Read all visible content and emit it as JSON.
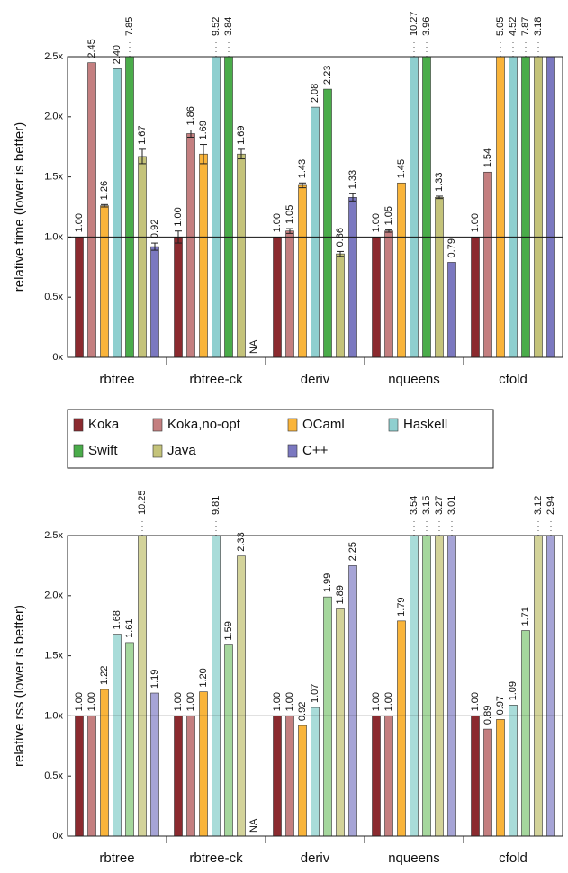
{
  "legend": [
    "Koka",
    "Koka,no-opt",
    "OCaml",
    "Haskell",
    "Swift",
    "Java",
    "C++"
  ],
  "chart_data": [
    {
      "type": "bar",
      "ylabel": "relative time  (lower is better)",
      "categories": [
        "rbtree",
        "rbtree-ck",
        "deriv",
        "nqueens",
        "cfold"
      ],
      "ylim": [
        0,
        2.5
      ],
      "yticks": [
        {
          "value": 0,
          "label": "0x"
        },
        {
          "value": 0.5,
          "label": "0.5x"
        },
        {
          "value": 1,
          "label": "1.0x"
        },
        {
          "value": 1.5,
          "label": "1.5x"
        },
        {
          "value": 2,
          "label": "2.0x"
        },
        {
          "value": 2.5,
          "label": "2.5x"
        }
      ],
      "reference_line": 1,
      "series": [
        {
          "color": "#8b2a2f",
          "values": [
            1,
            1,
            1,
            1,
            1
          ],
          "value_labels": [
            "1.00",
            "1.00",
            "1.00",
            "1.00",
            "1.00"
          ],
          "errors": [
            null,
            0.05,
            null,
            null,
            null
          ]
        },
        {
          "color": "#c47f80",
          "values": [
            2.45,
            1.86,
            1.05,
            1.05,
            1.54
          ],
          "value_labels": [
            "2.45",
            "1.86",
            "1.05",
            "1.05",
            "1.54"
          ],
          "errors": [
            null,
            0.03,
            0.02,
            0.01,
            null
          ]
        },
        {
          "color": "#f9b43a",
          "values": [
            1.26,
            1.69,
            1.43,
            1.45,
            5.05
          ],
          "value_labels": [
            "1.26",
            "1.69",
            "1.43",
            "1.45",
            "5.05"
          ],
          "errors": [
            0.01,
            0.08,
            0.02,
            null,
            null
          ]
        },
        {
          "color": "#8fcfcf",
          "values": [
            2.4,
            9.52,
            2.08,
            10.27,
            4.52
          ],
          "value_labels": [
            "2.40",
            "9.52",
            "2.08",
            "10.27",
            "4.52"
          ],
          "errors": [
            null,
            null,
            null,
            null,
            null
          ]
        },
        {
          "color": "#4aac4a",
          "values": [
            7.85,
            3.84,
            2.23,
            3.96,
            7.87
          ],
          "value_labels": [
            "7.85",
            "3.84",
            "2.23",
            "3.96",
            "7.87"
          ],
          "errors": [
            null,
            null,
            null,
            null,
            null
          ]
        },
        {
          "color": "#c4c37a",
          "values": [
            1.67,
            1.69,
            0.86,
            1.33,
            3.18
          ],
          "value_labels": [
            "1.67",
            "1.69",
            "0.86",
            "1.33",
            "3.18"
          ],
          "errors": [
            0.06,
            0.04,
            0.02,
            0.01,
            null
          ]
        },
        {
          "color": "#7b78c0",
          "values": [
            0.92,
            null,
            1.33,
            0.79,
            2.5
          ],
          "value_labels": [
            "0.92",
            "NA",
            "1.33",
            "0.79",
            null
          ],
          "errors": [
            0.03,
            null,
            0.03,
            null,
            null
          ]
        }
      ]
    },
    {
      "type": "bar",
      "ylabel": "relative rss  (lower is better)",
      "categories": [
        "rbtree",
        "rbtree-ck",
        "deriv",
        "nqueens",
        "cfold"
      ],
      "ylim": [
        0,
        2.5
      ],
      "yticks": [
        {
          "value": 0,
          "label": "0x"
        },
        {
          "value": 0.5,
          "label": "0.5x"
        },
        {
          "value": 1,
          "label": "1.0x"
        },
        {
          "value": 1.5,
          "label": "1.5x"
        },
        {
          "value": 2,
          "label": "2.0x"
        },
        {
          "value": 2.5,
          "label": "2.5x"
        }
      ],
      "reference_line": 1,
      "series": [
        {
          "color": "#8b2a2f",
          "values": [
            1,
            1,
            1,
            1,
            1
          ],
          "value_labels": [
            "1.00",
            "1.00",
            "1.00",
            "1.00",
            "1.00"
          ]
        },
        {
          "color": "#c47f80",
          "values": [
            1,
            1,
            1,
            1,
            0.89
          ],
          "value_labels": [
            "1.00",
            "1.00",
            "1.00",
            "1.00",
            "0.89"
          ]
        },
        {
          "color": "#f9b43a",
          "values": [
            1.22,
            1.2,
            0.92,
            1.79,
            0.97
          ],
          "value_labels": [
            "1.22",
            "1.20",
            "0.92",
            "1.79",
            "0.97"
          ]
        },
        {
          "color": "#a9dcd9",
          "values": [
            1.68,
            9.81,
            1.07,
            3.54,
            1.09
          ],
          "value_labels": [
            "1.68",
            "9.81",
            "1.07",
            "3.54",
            "1.09"
          ]
        },
        {
          "color": "#a5d79d",
          "values": [
            1.61,
            1.59,
            1.99,
            3.15,
            1.71
          ],
          "value_labels": [
            "1.61",
            "1.59",
            "1.99",
            "3.15",
            "1.71"
          ]
        },
        {
          "color": "#d3d39a",
          "values": [
            10.25,
            2.33,
            1.89,
            3.27,
            3.12
          ],
          "value_labels": [
            "10.25",
            "2.33",
            "1.89",
            "3.27",
            "3.12"
          ]
        },
        {
          "color": "#a6a4d6",
          "values": [
            1.19,
            null,
            2.25,
            3.01,
            2.94
          ],
          "value_labels": [
            "1.19",
            "NA",
            "2.25",
            "3.01",
            "2.94"
          ]
        }
      ]
    }
  ]
}
